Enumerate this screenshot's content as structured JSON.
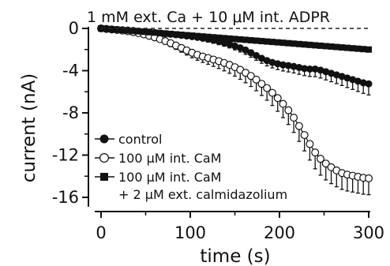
{
  "chart_data": {
    "type": "line",
    "title": "1 mM ext. Ca + 10 μM int. ADPR",
    "xlabel": "time (s)",
    "ylabel": "current (nA)",
    "xlim": [
      0,
      300
    ],
    "ylim": [
      -16,
      0
    ],
    "xticks": [
      0,
      100,
      200,
      300
    ],
    "yticks": [
      0,
      -4,
      -8,
      -12,
      -16
    ],
    "xtick_labels": [
      "0",
      "100",
      "200",
      "300"
    ],
    "ytick_labels": [
      "0",
      "-4",
      "-8",
      "-12",
      "-16"
    ],
    "zero_line": "dashed",
    "grid": false,
    "legend_position": "bottom-left",
    "error_bars": "downward",
    "series": [
      {
        "name": "control",
        "marker": "filled-circle",
        "x": [
          0,
          6,
          12,
          18,
          24,
          30,
          36,
          42,
          48,
          54,
          60,
          66,
          72,
          78,
          84,
          90,
          96,
          102,
          108,
          114,
          120,
          126,
          132,
          138,
          144,
          150,
          156,
          162,
          168,
          174,
          180,
          186,
          192,
          198,
          204,
          210,
          216,
          222,
          228,
          234,
          240,
          246,
          252,
          258,
          264,
          270,
          276,
          282,
          288,
          294,
          300
        ],
        "y": [
          0,
          -0.03,
          -0.06,
          -0.1,
          -0.13,
          -0.16,
          -0.2,
          -0.25,
          -0.3,
          -0.35,
          -0.4,
          -0.45,
          -0.5,
          -0.55,
          -0.6,
          -0.66,
          -0.72,
          -0.78,
          -0.85,
          -0.93,
          -1.02,
          -1.12,
          -1.23,
          -1.36,
          -1.5,
          -1.66,
          -1.84,
          -2.05,
          -2.3,
          -2.57,
          -2.83,
          -3.05,
          -3.22,
          -3.35,
          -3.45,
          -3.52,
          -3.6,
          -3.7,
          -3.8,
          -3.85,
          -3.85,
          -3.95,
          -4.1,
          -4.25,
          -4.4,
          -4.55,
          -4.7,
          -4.85,
          -5.0,
          -5.15,
          -5.25
        ],
        "err": [
          0,
          0.03,
          0.05,
          0.06,
          0.08,
          0.09,
          0.1,
          0.11,
          0.12,
          0.14,
          0.15,
          0.16,
          0.17,
          0.18,
          0.19,
          0.2,
          0.21,
          0.22,
          0.23,
          0.25,
          0.27,
          0.29,
          0.31,
          0.33,
          0.35,
          0.37,
          0.39,
          0.41,
          0.43,
          0.45,
          0.47,
          0.5,
          0.52,
          0.55,
          0.58,
          0.6,
          0.62,
          0.65,
          0.67,
          0.7,
          0.72,
          0.75,
          0.78,
          0.8,
          0.83,
          0.86,
          0.9,
          0.93,
          0.97,
          1.0,
          1.05
        ]
      },
      {
        "name": "100 μM int. CaM",
        "marker": "open-circle",
        "x": [
          0,
          6,
          12,
          18,
          24,
          30,
          36,
          42,
          48,
          54,
          60,
          66,
          72,
          78,
          84,
          90,
          96,
          102,
          108,
          114,
          120,
          126,
          132,
          138,
          144,
          150,
          156,
          162,
          168,
          174,
          180,
          186,
          192,
          198,
          204,
          210,
          216,
          222,
          228,
          234,
          240,
          246,
          252,
          258,
          264,
          270,
          276,
          282,
          288,
          294,
          300
        ],
        "y": [
          0,
          -0.05,
          -0.1,
          -0.15,
          -0.2,
          -0.27,
          -0.35,
          -0.45,
          -0.57,
          -0.7,
          -0.85,
          -1.02,
          -1.2,
          -1.4,
          -1.62,
          -1.85,
          -2.08,
          -2.3,
          -2.5,
          -2.66,
          -2.8,
          -2.95,
          -3.1,
          -3.27,
          -3.45,
          -3.67,
          -3.92,
          -4.2,
          -4.5,
          -4.85,
          -5.25,
          -5.65,
          -6.1,
          -6.6,
          -7.15,
          -7.75,
          -8.45,
          -9.25,
          -10.1,
          -10.95,
          -11.75,
          -12.35,
          -12.8,
          -13.15,
          -13.45,
          -13.7,
          -13.85,
          -13.95,
          -14.05,
          -14.15,
          -14.2
        ],
        "err": [
          0,
          0.03,
          0.05,
          0.07,
          0.1,
          0.12,
          0.15,
          0.18,
          0.2,
          0.22,
          0.25,
          0.27,
          0.3,
          0.33,
          0.37,
          0.4,
          0.44,
          0.48,
          0.52,
          0.56,
          0.6,
          0.65,
          0.7,
          0.75,
          0.8,
          0.85,
          0.9,
          0.95,
          1.0,
          1.05,
          1.1,
          1.15,
          1.2,
          1.25,
          1.3,
          1.35,
          1.4,
          1.45,
          1.5,
          1.52,
          1.55,
          1.55,
          1.55,
          1.55,
          1.55,
          1.55,
          1.55,
          1.55,
          1.55,
          1.55,
          1.55
        ]
      },
      {
        "name": "100 μM int. CaM\n+ 2 μM ext. calmidazolium",
        "marker": "filled-square",
        "x": [
          0,
          6,
          12,
          18,
          24,
          30,
          36,
          42,
          48,
          54,
          60,
          66,
          72,
          78,
          84,
          90,
          96,
          102,
          108,
          114,
          120,
          126,
          132,
          138,
          144,
          150,
          156,
          162,
          168,
          174,
          180,
          186,
          192,
          198,
          204,
          210,
          216,
          222,
          228,
          234,
          240,
          246,
          252,
          258,
          264,
          270,
          276,
          282,
          288,
          294,
          300
        ],
        "y": [
          0,
          -0.04,
          -0.08,
          -0.12,
          -0.16,
          -0.2,
          -0.24,
          -0.28,
          -0.32,
          -0.36,
          -0.4,
          -0.44,
          -0.48,
          -0.52,
          -0.56,
          -0.6,
          -0.64,
          -0.68,
          -0.72,
          -0.76,
          -0.8,
          -0.84,
          -0.88,
          -0.92,
          -0.96,
          -1.0,
          -1.04,
          -1.08,
          -1.12,
          -1.16,
          -1.2,
          -1.24,
          -1.28,
          -1.32,
          -1.36,
          -1.4,
          -1.44,
          -1.48,
          -1.52,
          -1.56,
          -1.6,
          -1.64,
          -1.68,
          -1.72,
          -1.76,
          -1.8,
          -1.84,
          -1.88,
          -1.92,
          -1.96,
          -2.0
        ],
        "err": []
      }
    ],
    "legend": [
      {
        "marker": "filled-circle",
        "label": "control"
      },
      {
        "marker": "open-circle",
        "label": "100 μM int. CaM"
      },
      {
        "marker": "filled-square",
        "label": "100 μM int. CaM"
      },
      {
        "marker": "none",
        "label": "+ 2 μM ext. calmidazolium"
      }
    ]
  }
}
